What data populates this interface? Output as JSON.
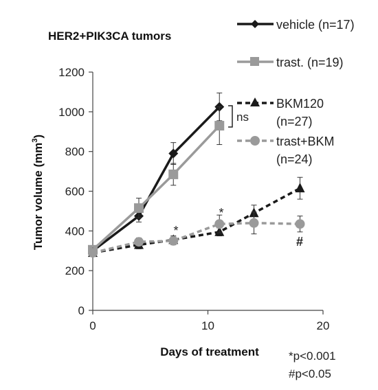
{
  "chart_data": {
    "type": "line",
    "title": "HER2+PIK3CA tumors",
    "xlabel": "Days of treatment",
    "ylabel_main": "Tumor volume (mm",
    "ylabel_sup": "3",
    "ylabel_close": ")",
    "xlim": [
      0,
      20
    ],
    "ylim": [
      0,
      1200
    ],
    "xticks": [
      0,
      10,
      20
    ],
    "yticks": [
      0,
      200,
      400,
      600,
      800,
      1000,
      1200
    ],
    "grid": false,
    "legend_position": "right",
    "series": [
      {
        "key": "vehicle",
        "label": "vehicle (n=17)",
        "color": "#1a1a1a",
        "dash": "solid",
        "marker": "diamond",
        "x": [
          0,
          4,
          7,
          11
        ],
        "y": [
          300,
          475,
          790,
          1025
        ],
        "err": [
          18,
          30,
          55,
          70
        ]
      },
      {
        "key": "trast",
        "label": "trast. (n=19)",
        "color": "#9a9a9a",
        "dash": "solid",
        "marker": "square",
        "x": [
          0,
          4,
          7,
          11
        ],
        "y": [
          305,
          515,
          685,
          930
        ],
        "err": [
          15,
          50,
          55,
          95
        ]
      },
      {
        "key": "bkm120",
        "label_line1": "BKM120",
        "label_line2": "(n=27)",
        "color": "#1a1a1a",
        "dash": "dashed",
        "marker": "triangle",
        "x": [
          0,
          4,
          7,
          11,
          14,
          18
        ],
        "y": [
          290,
          330,
          355,
          395,
          490,
          615
        ],
        "err": [
          15,
          20,
          20,
          20,
          40,
          55
        ]
      },
      {
        "key": "trastbkm",
        "label_line1": "trast+BKM",
        "label_line2": "(n=24)",
        "color": "#9a9a9a",
        "dash": "dashed",
        "marker": "circle",
        "x": [
          0,
          4,
          7,
          11,
          14,
          18
        ],
        "y": [
          290,
          345,
          350,
          435,
          440,
          435
        ],
        "err": [
          12,
          20,
          20,
          45,
          55,
          40
        ]
      }
    ],
    "annotations": {
      "ns": "ns",
      "star_day7": "*",
      "star_day11": "*",
      "hash_day18": "#",
      "footnote_star": "*p<0.001",
      "footnote_hash": "#p<0.05"
    }
  }
}
